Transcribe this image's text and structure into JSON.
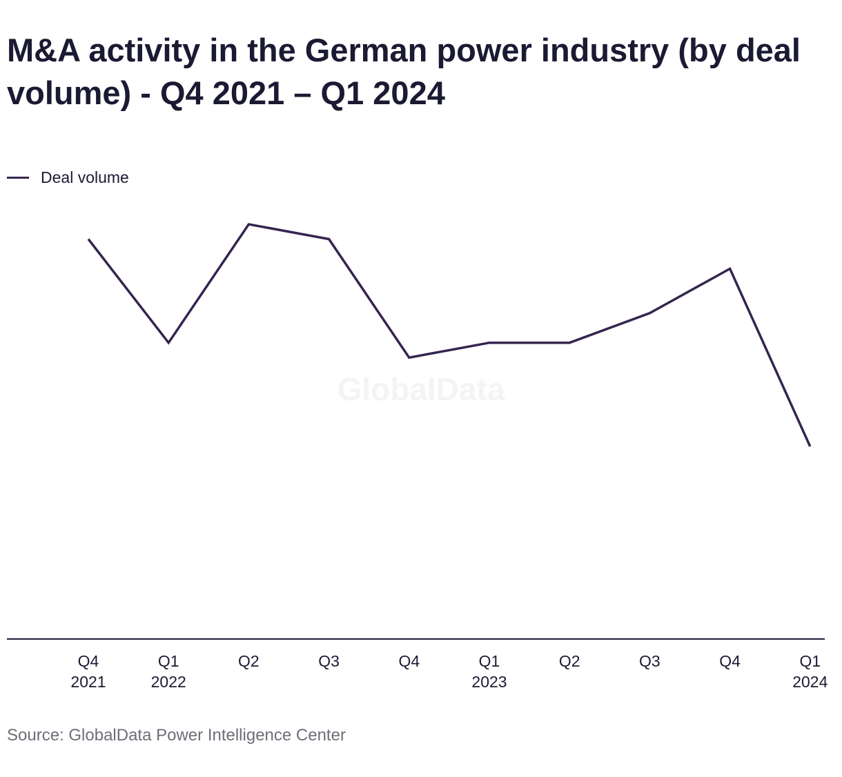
{
  "title": "M&A activity in the German power industry (by deal volume) - Q4 2021 – Q1 2024",
  "source": "Source: GlobalData Power Intelligence Center",
  "watermark": "GlobalData",
  "colors": {
    "line": "#35244f",
    "text": "#1b1a33",
    "source_text": "#6e6e78",
    "axis": "#1b1a33"
  },
  "chart_data": {
    "type": "line",
    "title": "M&A activity in the German power industry (by deal volume) - Q4 2021 – Q1 2024",
    "xlabel": "",
    "ylabel": "",
    "grid": false,
    "legend_position": "top-left",
    "categories": [
      [
        "Q4",
        "2021"
      ],
      [
        "Q1",
        "2022"
      ],
      [
        "Q2",
        ""
      ],
      [
        "Q3",
        ""
      ],
      [
        "Q4",
        ""
      ],
      [
        "Q1",
        "2023"
      ],
      [
        "Q2",
        ""
      ],
      [
        "Q3",
        ""
      ],
      [
        "Q4",
        ""
      ],
      [
        "Q1",
        "2024"
      ]
    ],
    "series": [
      {
        "name": "Deal volume",
        "color": "#35244f",
        "values": [
          27,
          20,
          28,
          27,
          19,
          20,
          20,
          22,
          25,
          13
        ]
      }
    ],
    "ylim": [
      0,
      43
    ]
  }
}
